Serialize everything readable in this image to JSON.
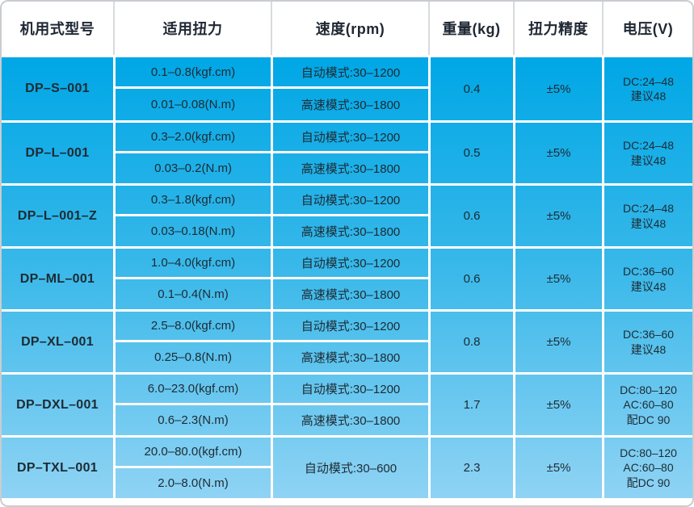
{
  "colors": {
    "cell_top": "#00a7e6",
    "cell_bottom": "#8fd3f4",
    "grid_line": "#ffffff",
    "header_text": "#1f2733",
    "body_text": "#1d2b33",
    "frame_border": "#c9cdd1"
  },
  "table": {
    "columns": [
      "机用式型号",
      "适用扭力",
      "速度(rpm)",
      "重量(kg)",
      "扭力精度",
      "电压(V)"
    ],
    "rows": [
      {
        "model": "DP–S–001",
        "torque": [
          "0.1–0.8(kgf.cm)",
          "0.01–0.08(N.m)"
        ],
        "speed": [
          "自动模式:30–1200",
          "高速模式:30–1800"
        ],
        "weight": "0.4",
        "accuracy": "±5%",
        "voltage": [
          "DC:24–48",
          "建议48"
        ]
      },
      {
        "model": "DP–L–001",
        "torque": [
          "0.3–2.0(kgf.cm)",
          "0.03–0.2(N.m)"
        ],
        "speed": [
          "自动模式:30–1200",
          "高速模式:30–1800"
        ],
        "weight": "0.5",
        "accuracy": "±5%",
        "voltage": [
          "DC:24–48",
          "建议48"
        ]
      },
      {
        "model": "DP–L–001–Z",
        "torque": [
          "0.3–1.8(kgf.cm)",
          "0.03–0.18(N.m)"
        ],
        "speed": [
          "自动模式:30–1200",
          "高速模式:30–1800"
        ],
        "weight": "0.6",
        "accuracy": "±5%",
        "voltage": [
          "DC:24–48",
          "建议48"
        ]
      },
      {
        "model": "DP–ML–001",
        "torque": [
          "1.0–4.0(kgf.cm)",
          "0.1–0.4(N.m)"
        ],
        "speed": [
          "自动模式:30–1200",
          "高速模式:30–1800"
        ],
        "weight": "0.6",
        "accuracy": "±5%",
        "voltage": [
          "DC:36–60",
          "建议48"
        ]
      },
      {
        "model": "DP–XL–001",
        "torque": [
          "2.5–8.0(kgf.cm)",
          "0.25–0.8(N.m)"
        ],
        "speed": [
          "自动模式:30–1200",
          "高速模式:30–1800"
        ],
        "weight": "0.8",
        "accuracy": "±5%",
        "voltage": [
          "DC:36–60",
          "建议48"
        ]
      },
      {
        "model": "DP–DXL–001",
        "torque": [
          "6.0–23.0(kgf.cm)",
          "0.6–2.3(N.m)"
        ],
        "speed": [
          "自动模式:30–1200",
          "高速模式:30–1800"
        ],
        "weight": "1.7",
        "accuracy": "±5%",
        "voltage": [
          "DC:80–120",
          "AC:60–80",
          "配DC 90"
        ]
      },
      {
        "model": "DP–TXL–001",
        "torque": [
          "20.0–80.0(kgf.cm)",
          "2.0–8.0(N.m)"
        ],
        "speed": [
          "自动模式:30–600"
        ],
        "weight": "2.3",
        "accuracy": "±5%",
        "voltage": [
          "DC:80–120",
          "AC:60–80",
          "配DC 90"
        ]
      }
    ]
  }
}
